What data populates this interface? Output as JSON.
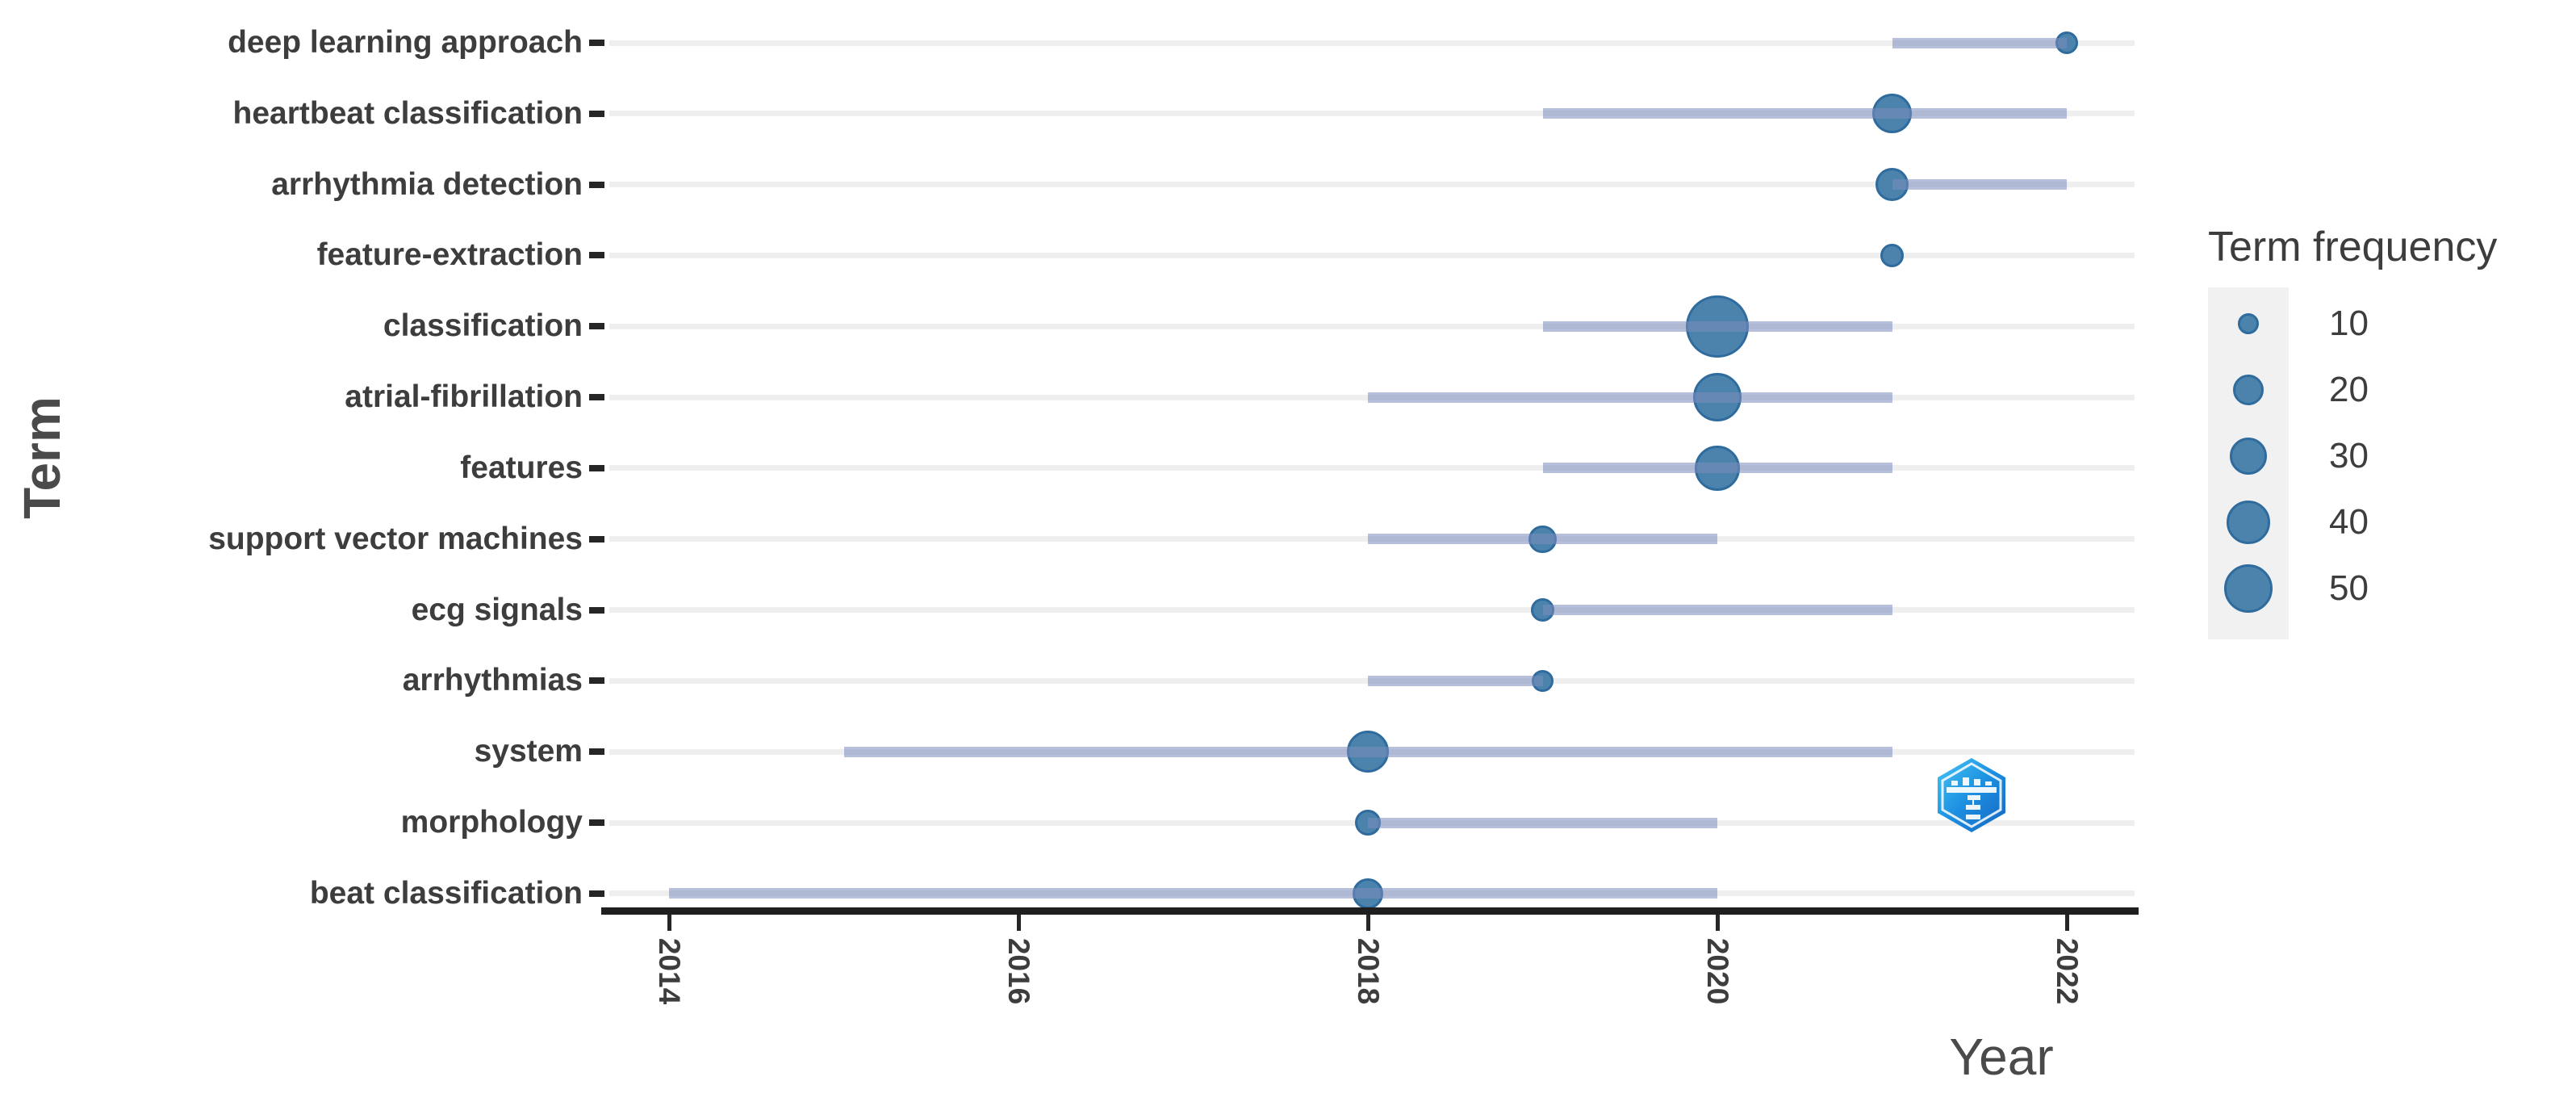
{
  "axes": {
    "x_title": "Year",
    "y_title": "Term"
  },
  "legend": {
    "title": "Term frequency",
    "sizes": [
      10,
      20,
      30,
      40,
      50
    ]
  },
  "colors": {
    "dot_fill": "#4b83ad",
    "dot_stroke": "#2f6b9d",
    "range_line": "#b3bdd5",
    "gridline": "#efefef",
    "axis_line": "#1f1f1f",
    "text": "#3d3d3d",
    "legend_key_bg": "#f1f1f1",
    "watermark_blue": "#1d8fe0"
  },
  "watermark": {
    "icon": "hexagon-logo"
  },
  "chart_data": {
    "type": "scatter",
    "variant": "trend-topics-dumbbell",
    "title": "",
    "xlabel": "Year",
    "ylabel": "Term",
    "x_ticks": [
      2014,
      2016,
      2018,
      2020,
      2022
    ],
    "xlim": [
      2013.6,
      2022.4
    ],
    "grid": "horizontal-only",
    "legend_position": "right",
    "legend_title": "Term frequency",
    "legend_sizes": [
      10,
      20,
      30,
      40,
      50
    ],
    "series": [
      {
        "term": "deep learning approach",
        "year_q1": 2021,
        "year_median": 2022,
        "year_q3": 2022,
        "frequency": 7
      },
      {
        "term": "heartbeat classification",
        "year_q1": 2019,
        "year_median": 2021,
        "year_q3": 2022,
        "frequency": 20
      },
      {
        "term": "arrhythmia detection",
        "year_q1": 2021,
        "year_median": 2021,
        "year_q3": 2022,
        "frequency": 14
      },
      {
        "term": "feature-extraction",
        "year_q1": 2021,
        "year_median": 2021,
        "year_q3": 2021,
        "frequency": 7
      },
      {
        "term": "classification",
        "year_q1": 2019,
        "year_median": 2020,
        "year_q3": 2021,
        "frequency": 50
      },
      {
        "term": "atrial-fibrillation",
        "year_q1": 2018,
        "year_median": 2020,
        "year_q3": 2021,
        "frequency": 30
      },
      {
        "term": "features",
        "year_q1": 2019,
        "year_median": 2020,
        "year_q3": 2021,
        "frequency": 26
      },
      {
        "term": "support vector machines",
        "year_q1": 2018,
        "year_median": 2019,
        "year_q3": 2020,
        "frequency": 10
      },
      {
        "term": "ecg signals",
        "year_q1": 2019,
        "year_median": 2019,
        "year_q3": 2021,
        "frequency": 7
      },
      {
        "term": "arrhythmias",
        "year_q1": 2018,
        "year_median": 2019,
        "year_q3": 2019,
        "frequency": 6
      },
      {
        "term": "system",
        "year_q1": 2015,
        "year_median": 2018,
        "year_q3": 2021,
        "frequency": 23
      },
      {
        "term": "morphology",
        "year_q1": 2018,
        "year_median": 2018,
        "year_q3": 2020,
        "frequency": 9
      },
      {
        "term": "beat classification",
        "year_q1": 2014,
        "year_median": 2018,
        "year_q3": 2020,
        "frequency": 12
      }
    ]
  }
}
